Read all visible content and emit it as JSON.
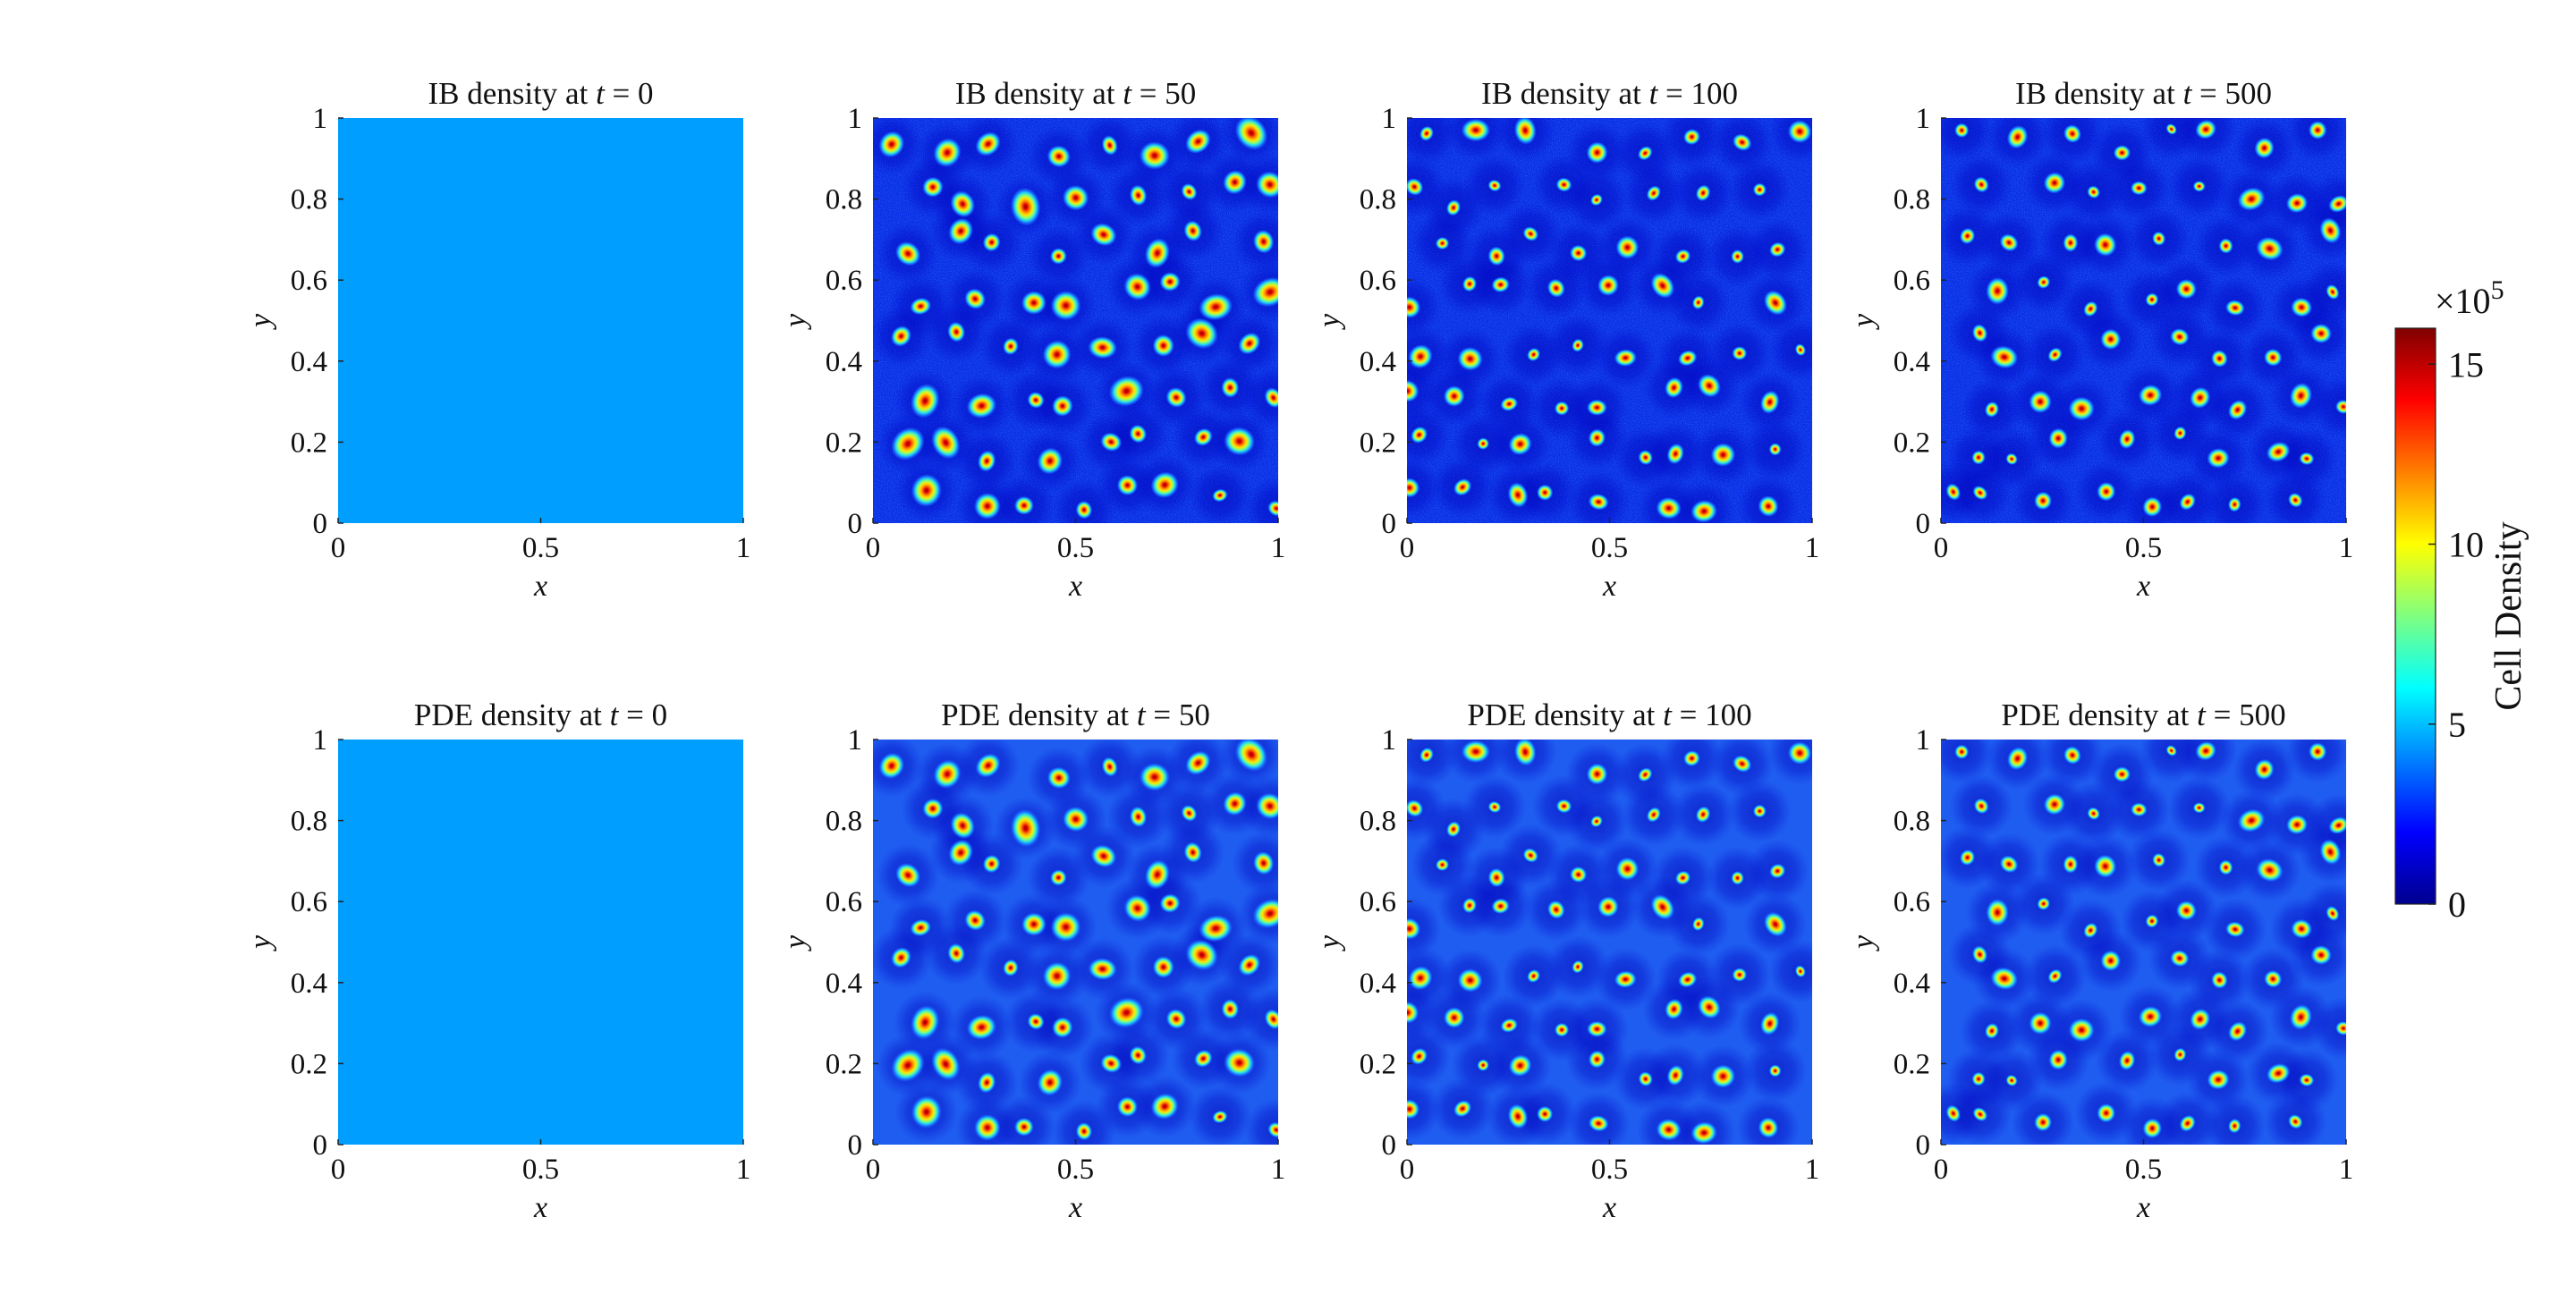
{
  "figure": {
    "colormap": "jet",
    "colorbar": {
      "label": "Cell Density",
      "multiplier": "×10",
      "multiplier_exp": "5",
      "ticks": [
        "0",
        "5",
        "10",
        "15"
      ],
      "range": [
        0,
        16
      ]
    }
  },
  "chart_data": [
    {
      "type": "heatmap",
      "row": "IB",
      "title_prefix": "IB density at ",
      "t_symbol": "t",
      "t_value": "= 0",
      "pattern": "uniform",
      "value": 4.5,
      "xlabel": "x",
      "ylabel": "y",
      "xticks": [
        "0",
        "0.5",
        "1"
      ],
      "yticks": [
        "0",
        "0.2",
        "0.4",
        "0.6",
        "0.8",
        "1"
      ],
      "xlim": [
        0,
        1
      ],
      "ylim": [
        0,
        1
      ]
    },
    {
      "type": "heatmap",
      "row": "IB",
      "title_prefix": "IB density at ",
      "t_symbol": "t",
      "t_value": "= 50",
      "pattern": "spots-noisy",
      "xlabel": "x",
      "ylabel": "y",
      "xticks": [
        "0",
        "0.5",
        "1"
      ],
      "yticks": [
        "0",
        "0.2",
        "0.4",
        "0.6",
        "0.8",
        "1"
      ],
      "xlim": [
        0,
        1
      ],
      "ylim": [
        0,
        1
      ]
    },
    {
      "type": "heatmap",
      "row": "IB",
      "title_prefix": "IB density at ",
      "t_symbol": "t",
      "t_value": "= 100",
      "pattern": "spots-noisy",
      "xlabel": "x",
      "ylabel": "y",
      "xticks": [
        "0",
        "0.5",
        "1"
      ],
      "yticks": [
        "0",
        "0.2",
        "0.4",
        "0.6",
        "0.8",
        "1"
      ],
      "xlim": [
        0,
        1
      ],
      "ylim": [
        0,
        1
      ]
    },
    {
      "type": "heatmap",
      "row": "IB",
      "title_prefix": "IB density at ",
      "t_symbol": "t",
      "t_value": "= 500",
      "pattern": "spots-noisy",
      "xlabel": "x",
      "ylabel": "y",
      "xticks": [
        "0",
        "0.5",
        "1"
      ],
      "yticks": [
        "0",
        "0.2",
        "0.4",
        "0.6",
        "0.8",
        "1"
      ],
      "xlim": [
        0,
        1
      ],
      "ylim": [
        0,
        1
      ]
    },
    {
      "type": "heatmap",
      "row": "PDE",
      "title_prefix": "PDE density at ",
      "t_symbol": "t",
      "t_value": "= 0",
      "pattern": "uniform",
      "value": 4.5,
      "xlabel": "x",
      "ylabel": "y",
      "xticks": [
        "0",
        "0.5",
        "1"
      ],
      "yticks": [
        "0",
        "0.2",
        "0.4",
        "0.6",
        "0.8",
        "1"
      ],
      "xlim": [
        0,
        1
      ],
      "ylim": [
        0,
        1
      ]
    },
    {
      "type": "heatmap",
      "row": "PDE",
      "title_prefix": "PDE density at ",
      "t_symbol": "t",
      "t_value": "= 50",
      "pattern": "spots-smooth",
      "xlabel": "x",
      "ylabel": "y",
      "xticks": [
        "0",
        "0.5",
        "1"
      ],
      "yticks": [
        "0",
        "0.2",
        "0.4",
        "0.6",
        "0.8",
        "1"
      ],
      "xlim": [
        0,
        1
      ],
      "ylim": [
        0,
        1
      ]
    },
    {
      "type": "heatmap",
      "row": "PDE",
      "title_prefix": "PDE density at ",
      "t_symbol": "t",
      "t_value": "= 100",
      "pattern": "spots-smooth",
      "xlabel": "x",
      "ylabel": "y",
      "xticks": [
        "0",
        "0.5",
        "1"
      ],
      "yticks": [
        "0",
        "0.2",
        "0.4",
        "0.6",
        "0.8",
        "1"
      ],
      "xlim": [
        0,
        1
      ],
      "ylim": [
        0,
        1
      ]
    },
    {
      "type": "heatmap",
      "row": "PDE",
      "title_prefix": "PDE density at ",
      "t_symbol": "t",
      "t_value": "= 500",
      "pattern": "spots-smooth",
      "xlabel": "x",
      "ylabel": "y",
      "xticks": [
        "0",
        "0.5",
        "1"
      ],
      "yticks": [
        "0",
        "0.2",
        "0.4",
        "0.6",
        "0.8",
        "1"
      ],
      "xlim": [
        0,
        1
      ],
      "ylim": [
        0,
        1
      ]
    }
  ]
}
